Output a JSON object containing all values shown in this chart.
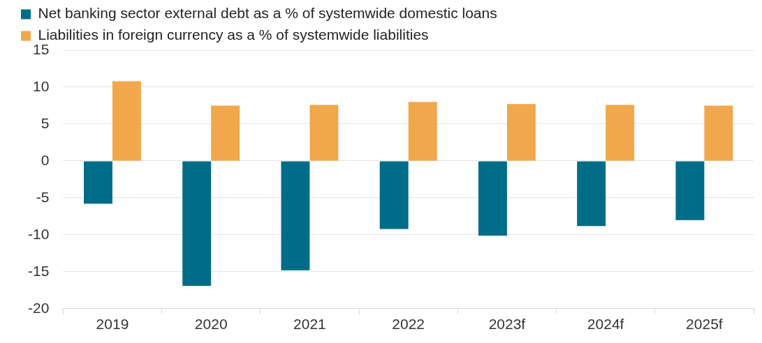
{
  "chart_data": {
    "type": "bar",
    "categories": [
      "2019",
      "2020",
      "2021",
      "2022",
      "2023f",
      "2024f",
      "2025f"
    ],
    "series": [
      {
        "name": "Net banking sector external debt as a % of systemwide domestic loans",
        "color": "#006d88",
        "values": [
          -5.8,
          -16.9,
          -14.8,
          -9.2,
          -10.1,
          -8.8,
          -8.0
        ]
      },
      {
        "name": "Liabilities in foreign currency as a % of systemwide liabilities",
        "color": "#f1a74c",
        "values": [
          10.8,
          7.5,
          7.6,
          8.0,
          7.7,
          7.6,
          7.5
        ]
      }
    ],
    "ylim": [
      -20,
      15
    ],
    "yticks": [
      -20,
      -15,
      -10,
      -5,
      0,
      5,
      10,
      15
    ],
    "grid": "y",
    "legend": "top left"
  }
}
